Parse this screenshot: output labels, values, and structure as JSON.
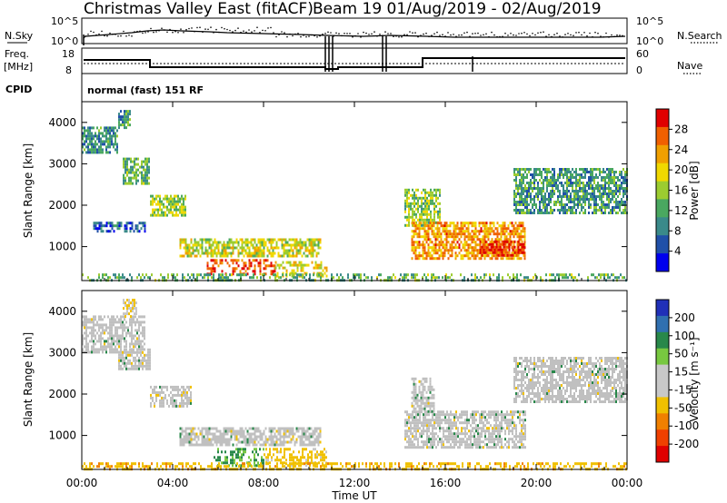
{
  "header": {
    "radar_title": "Christmas Valley East (fitACF)",
    "beam_date": "Beam 19 01/Aug/2019 - 02/Aug/2019"
  },
  "summary": {
    "n_sky_label": "N.Sky",
    "n_search_label": "N.Search",
    "freq_label_1": "Freq.",
    "freq_label_2": "[MHz]",
    "nave_label": "Nave",
    "cpid_label": "CPID",
    "cpid_text": "normal (fast) 151 RF",
    "noise_ticks_left": [
      "10^5",
      "10^0"
    ],
    "noise_ticks_right": [
      "10^5",
      "10^0"
    ],
    "freq_ticks": [
      "18",
      "8"
    ],
    "nave_ticks": [
      "60",
      "0"
    ]
  },
  "colors": {
    "power_scale": [
      "#0000ee",
      "#2050a8",
      "#3a8a8a",
      "#4aa860",
      "#9ccc30",
      "#f0d800",
      "#f0a000",
      "#f06000",
      "#e00000"
    ],
    "velocity_scale": [
      "#2030b8",
      "#3070b0",
      "#28884a",
      "#78c840",
      "#c8c8c8",
      "#c8c8c8",
      "#f0c000",
      "#f08000",
      "#f04000",
      "#e00000"
    ],
    "ground_scatter": "#c0c0c0"
  },
  "chart_data": [
    {
      "type": "heatmap",
      "name": "power",
      "ylabel": "Slant Range [km]",
      "xlabel": "",
      "ylim": [
        180,
        4500
      ],
      "y_ticks": [
        "1000",
        "2000",
        "3000",
        "4000"
      ],
      "colorbar": {
        "label": "Power [dB]",
        "ticks": [
          "4",
          "8",
          "12",
          "16",
          "20",
          "24",
          "28"
        ],
        "range": [
          0,
          30
        ]
      },
      "regions": [
        {
          "t": [
            0.0,
            1.6
          ],
          "r": [
            3300,
            3900
          ],
          "v": 9
        },
        {
          "t": [
            1.6,
            2.1
          ],
          "r": [
            3900,
            4300
          ],
          "v": 10
        },
        {
          "t": [
            1.8,
            3.0
          ],
          "r": [
            2500,
            3150
          ],
          "v": 12
        },
        {
          "t": [
            3.0,
            4.6
          ],
          "r": [
            1750,
            2250
          ],
          "v": 15
        },
        {
          "t": [
            0.5,
            2.8
          ],
          "r": [
            1350,
            1600
          ],
          "v": 6
        },
        {
          "t": [
            4.3,
            10.5
          ],
          "r": [
            780,
            1200
          ],
          "v": 17
        },
        {
          "t": [
            5.5,
            8.5
          ],
          "r": [
            330,
            700
          ],
          "v": 26
        },
        {
          "t": [
            8.5,
            10.8
          ],
          "r": [
            300,
            650
          ],
          "v": 18
        },
        {
          "t": [
            14.2,
            15.8
          ],
          "r": [
            1500,
            2400
          ],
          "v": 14
        },
        {
          "t": [
            14.5,
            19.5
          ],
          "r": [
            700,
            1600
          ],
          "v": 22
        },
        {
          "t": [
            17.5,
            19.5
          ],
          "r": [
            800,
            1150
          ],
          "v": 27
        },
        {
          "t": [
            19.0,
            24.0
          ],
          "r": [
            1800,
            2900
          ],
          "v": 10
        },
        {
          "t": [
            0.0,
            24.0
          ],
          "r": [
            180,
            350
          ],
          "v": 12
        }
      ]
    },
    {
      "type": "heatmap",
      "name": "velocity",
      "ylabel": "Slant Range [km]",
      "xlabel": "Time UT",
      "ylim": [
        180,
        4500
      ],
      "y_ticks": [
        "1000",
        "2000",
        "3000",
        "4000"
      ],
      "x_ticks": [
        "00:00",
        "04:00",
        "08:00",
        "12:00",
        "16:00",
        "20:00",
        "00:00"
      ],
      "xlim": [
        0,
        24
      ],
      "colorbar": {
        "label": "Velocity [m s⁻¹]",
        "ticks": [
          "200",
          "100",
          "50",
          "15",
          "-15",
          "-50",
          "-100",
          "-200"
        ],
        "range": [
          -250,
          250
        ]
      },
      "regions": [
        {
          "t": [
            0.0,
            2.8
          ],
          "r": [
            3000,
            3900
          ],
          "v": 0
        },
        {
          "t": [
            1.8,
            2.4
          ],
          "r": [
            3900,
            4300
          ],
          "v": -40
        },
        {
          "t": [
            1.6,
            3.0
          ],
          "r": [
            2600,
            3100
          ],
          "v": 0
        },
        {
          "t": [
            3.0,
            4.8
          ],
          "r": [
            1700,
            2200
          ],
          "v": 0
        },
        {
          "t": [
            4.3,
            10.5
          ],
          "r": [
            780,
            1200
          ],
          "v": 0
        },
        {
          "t": [
            5.8,
            8.0
          ],
          "r": [
            300,
            700
          ],
          "v": 60
        },
        {
          "t": [
            8.0,
            10.8
          ],
          "r": [
            300,
            700
          ],
          "v": -70
        },
        {
          "t": [
            0.0,
            24.0
          ],
          "r": [
            180,
            350
          ],
          "v": -80
        },
        {
          "t": [
            14.2,
            19.5
          ],
          "r": [
            700,
            1600
          ],
          "v": 0
        },
        {
          "t": [
            14.5,
            15.5
          ],
          "r": [
            1600,
            2400
          ],
          "v": 0
        },
        {
          "t": [
            19.0,
            24.0
          ],
          "r": [
            1800,
            2900
          ],
          "v": 0
        }
      ]
    }
  ]
}
